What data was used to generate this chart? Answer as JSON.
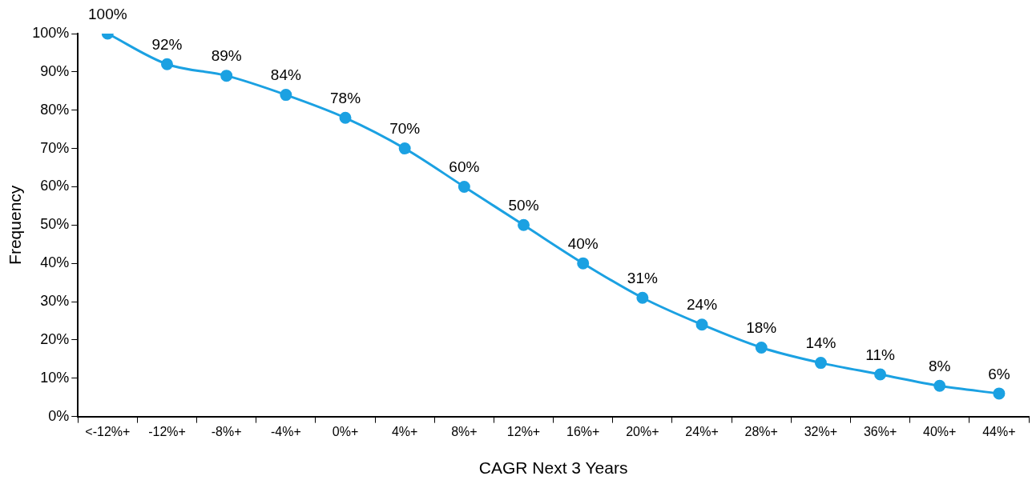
{
  "chart_data": {
    "type": "line",
    "xlabel": "CAGR Next 3 Years",
    "ylabel": "Frequency",
    "categories": [
      "<-12%+",
      "-12%+",
      "-8%+",
      "-4%+",
      "0%+",
      "4%+",
      "8%+",
      "12%+",
      "16%+",
      "20%+",
      "24%+",
      "28%+",
      "32%+",
      "36%+",
      "40%+",
      "44%+"
    ],
    "series": [
      {
        "color": "#1ba1e2",
        "values": [
          100,
          92,
          89,
          84,
          78,
          70,
          60,
          50,
          40,
          31,
          24,
          18,
          14,
          11,
          8,
          6
        ],
        "value_labels": [
          "100%",
          "92%",
          "89%",
          "84%",
          "78%",
          "70%",
          "60%",
          "50%",
          "40%",
          "31%",
          "24%",
          "18%",
          "14%",
          "11%",
          "8%",
          "6%"
        ]
      }
    ],
    "ylim": [
      0,
      100
    ],
    "yticks": [
      {
        "value": 0,
        "label": "0%"
      },
      {
        "value": 10,
        "label": "10%"
      },
      {
        "value": 20,
        "label": "20%"
      },
      {
        "value": 30,
        "label": "30%"
      },
      {
        "value": 40,
        "label": "40%"
      },
      {
        "value": 50,
        "label": "50%"
      },
      {
        "value": 60,
        "label": "60%"
      },
      {
        "value": 70,
        "label": "70%"
      },
      {
        "value": 80,
        "label": "80%"
      },
      {
        "value": 90,
        "label": "90%"
      },
      {
        "value": 100,
        "label": "100%"
      }
    ],
    "grid": false,
    "legend": false,
    "marker": "circle",
    "line_style": "solid"
  }
}
